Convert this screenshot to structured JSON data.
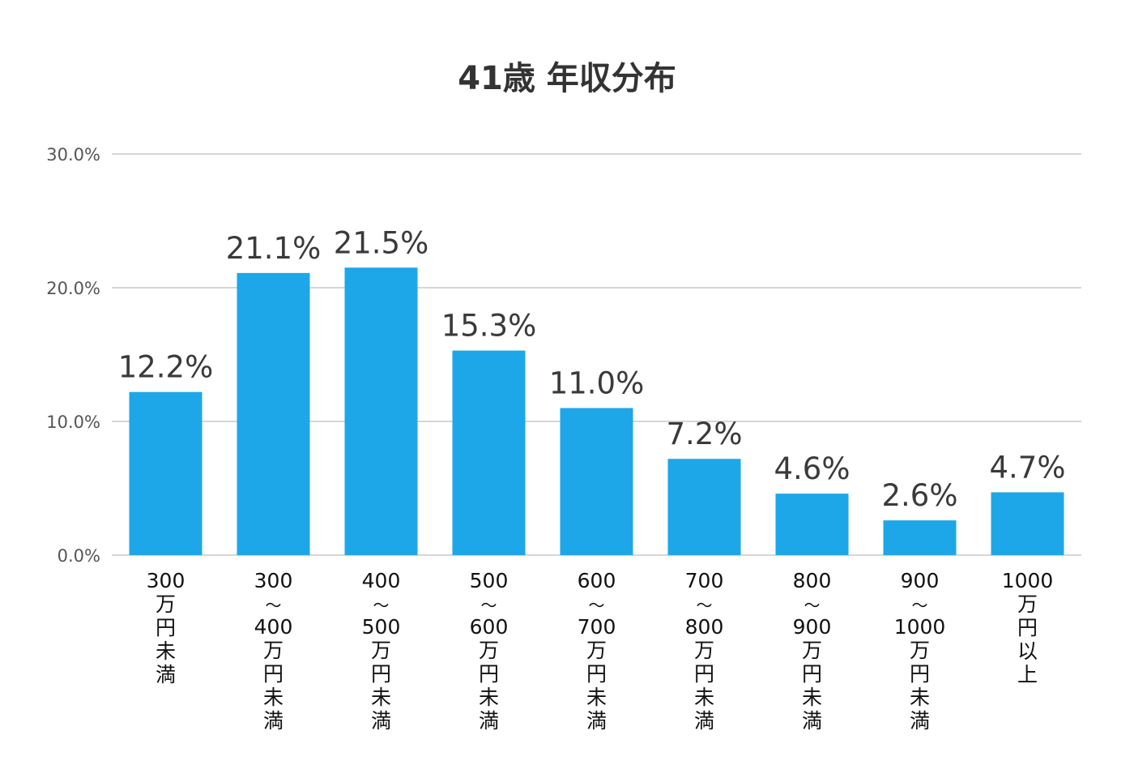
{
  "chart_data": {
    "type": "bar",
    "title": "41歳 年収分布",
    "categories": [
      [
        "300",
        "万",
        "円",
        "未",
        "満"
      ],
      [
        "300",
        "〜",
        "400",
        "万",
        "円",
        "未",
        "満"
      ],
      [
        "400",
        "〜",
        "500",
        "万",
        "円",
        "未",
        "満"
      ],
      [
        "500",
        "〜",
        "600",
        "万",
        "円",
        "未",
        "満"
      ],
      [
        "600",
        "〜",
        "700",
        "万",
        "円",
        "未",
        "満"
      ],
      [
        "700",
        "〜",
        "800",
        "万",
        "円",
        "未",
        "満"
      ],
      [
        "800",
        "〜",
        "900",
        "万",
        "円",
        "未",
        "満"
      ],
      [
        "900",
        "〜",
        "1000",
        "万",
        "円",
        "未",
        "満"
      ],
      [
        "1000",
        "万",
        "円",
        "以",
        "上"
      ]
    ],
    "values": [
      12.2,
      21.1,
      21.5,
      15.3,
      11.0,
      7.2,
      4.6,
      2.6,
      4.7
    ],
    "value_labels": [
      "12.2%",
      "21.1%",
      "21.5%",
      "15.3%",
      "11.0%",
      "7.2%",
      "4.6%",
      "2.6%",
      "4.7%"
    ],
    "yticks": [
      0,
      10,
      20,
      30
    ],
    "ytick_labels": [
      "0.0%",
      "10.0%",
      "20.0%",
      "30.0%"
    ],
    "ylim": [
      0,
      30
    ],
    "xlabel": "",
    "ylabel": "",
    "grid": true,
    "legend": "none",
    "bar_color": "#1ea7e8",
    "grid_color": "#d6d6d6"
  }
}
